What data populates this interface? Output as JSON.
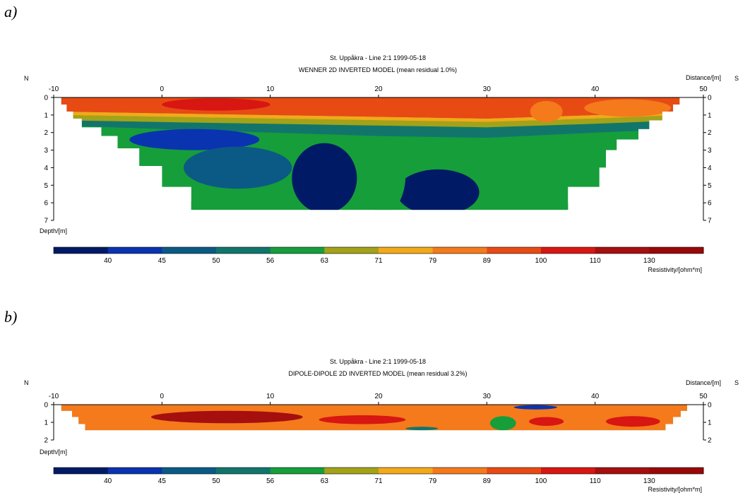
{
  "figure": {
    "labels": [
      "a)",
      "b)"
    ]
  },
  "chart_data": [
    {
      "type": "heatmap",
      "title": "St. Uppåkra - Line 2:1 1999-05-18",
      "subtitle": "WENNER 2D INVERTED MODEL (mean residual 1.0%)",
      "left_label": "N",
      "right_label": "S",
      "xlabel": "Distance/[m]",
      "ylabel": "Depth/[m]",
      "xlim": [
        -10,
        50
      ],
      "ylim": [
        0,
        7
      ],
      "x_ticks": [
        -10,
        0,
        10,
        20,
        30,
        40,
        50
      ],
      "y_ticks": [
        0,
        1,
        2,
        3,
        4,
        5,
        6,
        7
      ],
      "colorbar": {
        "label": "Resistivity/[ohm*m]",
        "tick_labels": [
          "40",
          "45",
          "50",
          "56",
          "63",
          "71",
          "79",
          "89",
          "100",
          "110",
          "130"
        ],
        "colors": [
          "#001a66",
          "#0a33b0",
          "#0a5a85",
          "#11756c",
          "#169e3a",
          "#a3a219",
          "#f2a91a",
          "#f47a1c",
          "#e84a14",
          "#d81612",
          "#a50f0e",
          "#990808"
        ]
      },
      "section_outline": [
        [
          -9.3,
          0
        ],
        [
          47.8,
          0
        ],
        [
          47.8,
          0.4
        ],
        [
          47.2,
          0.4
        ],
        [
          47.2,
          0.8
        ],
        [
          46.2,
          0.8
        ],
        [
          46.2,
          1.3
        ],
        [
          45,
          1.3
        ],
        [
          45,
          1.8
        ],
        [
          44,
          1.8
        ],
        [
          44,
          2.4
        ],
        [
          42,
          2.4
        ],
        [
          42,
          3
        ],
        [
          41,
          3
        ],
        [
          41,
          4
        ],
        [
          40.4,
          4
        ],
        [
          40.4,
          5.1
        ],
        [
          37.5,
          5.1
        ],
        [
          37.5,
          6.4
        ],
        [
          2.7,
          6.4
        ],
        [
          2.7,
          5.1
        ],
        [
          0,
          5.1
        ],
        [
          0,
          3.9
        ],
        [
          -2.1,
          3.9
        ],
        [
          -2.1,
          2.9
        ],
        [
          -4.1,
          2.9
        ],
        [
          -4.1,
          2.2
        ],
        [
          -5.6,
          2.2
        ],
        [
          -5.6,
          1.7
        ],
        [
          -7.4,
          1.7
        ],
        [
          -7.4,
          1.2
        ],
        [
          -8.2,
          1.2
        ],
        [
          -8.2,
          0.8
        ],
        [
          -8.8,
          0.8
        ],
        [
          -8.8,
          0.4
        ],
        [
          -9.3,
          0.4
        ]
      ],
      "bands": [
        {
          "level": 4,
          "top": [
            [
              -9.3,
              1.6
            ],
            [
              0,
              1.8
            ],
            [
              10,
              2.0
            ],
            [
              20,
              2.2
            ],
            [
              30,
              2.3
            ],
            [
              40,
              2.0
            ],
            [
              48,
              1.8
            ]
          ],
          "bottom": [
            [
              -9.3,
              7
            ],
            [
              48,
              7
            ]
          ]
        },
        {
          "level": 3,
          "top": [
            [
              -9.3,
              1.3
            ],
            [
              0,
              1.4
            ],
            [
              10,
              1.5
            ],
            [
              20,
              1.6
            ],
            [
              30,
              1.7
            ],
            [
              40,
              1.5
            ],
            [
              48,
              1.3
            ]
          ],
          "bottom": [
            [
              48,
              1.8
            ],
            [
              40,
              2.0
            ],
            [
              30,
              2.3
            ],
            [
              20,
              2.2
            ],
            [
              10,
              2.0
            ],
            [
              0,
              1.8
            ],
            [
              -9.3,
              1.6
            ]
          ]
        },
        {
          "level": 5,
          "top": [
            [
              -9.3,
              1.0
            ],
            [
              0,
              1.1
            ],
            [
              10,
              1.2
            ],
            [
              20,
              1.3
            ],
            [
              30,
              1.4
            ],
            [
              40,
              1.2
            ],
            [
              48,
              1.0
            ]
          ],
          "bottom": [
            [
              48,
              1.3
            ],
            [
              40,
              1.5
            ],
            [
              30,
              1.7
            ],
            [
              20,
              1.6
            ],
            [
              10,
              1.5
            ],
            [
              0,
              1.4
            ],
            [
              -9.3,
              1.3
            ]
          ]
        },
        {
          "level": 6,
          "top": [
            [
              -9.3,
              0.8
            ],
            [
              0,
              0.9
            ],
            [
              10,
              1.0
            ],
            [
              20,
              1.1
            ],
            [
              30,
              1.2
            ],
            [
              40,
              1.0
            ],
            [
              48,
              0.8
            ]
          ],
          "bottom": [
            [
              48,
              1.0
            ],
            [
              40,
              1.2
            ],
            [
              30,
              1.4
            ],
            [
              20,
              1.3
            ],
            [
              10,
              1.2
            ],
            [
              0,
              1.1
            ],
            [
              -9.3,
              1.0
            ]
          ]
        },
        {
          "level": 8,
          "top": [
            [
              -9.3,
              0
            ],
            [
              48,
              0
            ]
          ],
          "bottom": [
            [
              48,
              0.8
            ],
            [
              40,
              1.0
            ],
            [
              30,
              1.2
            ],
            [
              20,
              1.1
            ],
            [
              10,
              1.0
            ],
            [
              0,
              0.9
            ],
            [
              -9.3,
              0.8
            ]
          ]
        }
      ],
      "blobs": [
        {
          "level": 0,
          "cx": 15.0,
          "cy": 4.6,
          "rx": 3.0,
          "ry": 2.0
        },
        {
          "level": 0,
          "cx": 25.5,
          "cy": 5.4,
          "rx": 3.8,
          "ry": 1.3
        },
        {
          "level": 1,
          "cx": 3.0,
          "cy": 2.4,
          "rx": 6.0,
          "ry": 0.6
        },
        {
          "level": 4,
          "cx": 20.5,
          "cy": 4.4,
          "rx": 2.0,
          "ry": 2.2
        },
        {
          "level": 2,
          "cx": 7.0,
          "cy": 4.0,
          "rx": 5.0,
          "ry": 1.2
        },
        {
          "level": 9,
          "cx": 5.0,
          "cy": 0.4,
          "rx": 5.0,
          "ry": 0.35
        },
        {
          "level": 7,
          "cx": 43.0,
          "cy": 0.6,
          "rx": 4.0,
          "ry": 0.5
        },
        {
          "level": 7,
          "cx": 35.5,
          "cy": 0.8,
          "rx": 1.5,
          "ry": 0.6
        }
      ]
    },
    {
      "type": "heatmap",
      "title": "St. Uppåkra - Line 2:1 1999-05-18",
      "subtitle": "DIPOLE-DIPOLE 2D INVERTED MODEL (mean residual 3.2%)",
      "left_label": "N",
      "right_label": "S",
      "xlabel": "Distance/[m]",
      "ylabel": "Depth/[m]",
      "xlim": [
        -10,
        50
      ],
      "ylim": [
        0,
        2
      ],
      "x_ticks": [
        -10,
        0,
        10,
        20,
        30,
        40,
        50
      ],
      "y_ticks": [
        0,
        1,
        2
      ],
      "colorbar": {
        "label": "Resistivity/[ohm*m]",
        "tick_labels": [
          "40",
          "45",
          "50",
          "56",
          "63",
          "71",
          "79",
          "89",
          "100",
          "110",
          "130"
        ],
        "colors": [
          "#001a66",
          "#0a33b0",
          "#0a5a85",
          "#11756c",
          "#169e3a",
          "#a3a219",
          "#f2a91a",
          "#f47a1c",
          "#e84a14",
          "#d81612",
          "#a50f0e",
          "#990808"
        ]
      },
      "section_outline": [
        [
          -9.3,
          0
        ],
        [
          48.5,
          0
        ],
        [
          48.5,
          0.35
        ],
        [
          47.9,
          0.35
        ],
        [
          47.9,
          0.7
        ],
        [
          47.2,
          0.7
        ],
        [
          47.2,
          1.1
        ],
        [
          46.5,
          1.1
        ],
        [
          46.5,
          1.45
        ],
        [
          -7.1,
          1.45
        ],
        [
          -7.1,
          1.1
        ],
        [
          -7.7,
          1.1
        ],
        [
          -7.7,
          0.7
        ],
        [
          -8.3,
          0.7
        ],
        [
          -8.3,
          0.35
        ],
        [
          -9.3,
          0.35
        ]
      ],
      "bands": [
        {
          "level": 7,
          "top": [
            [
              -9.3,
              0
            ],
            [
              48.5,
              0
            ]
          ],
          "bottom": [
            [
              48.5,
              1.45
            ],
            [
              -9.3,
              1.45
            ]
          ]
        }
      ],
      "blobs": [
        {
          "level": 10,
          "cx": 6.0,
          "cy": 0.7,
          "rx": 7.0,
          "ry": 0.35
        },
        {
          "level": 9,
          "cx": 18.5,
          "cy": 0.85,
          "rx": 4.0,
          "ry": 0.25
        },
        {
          "level": 9,
          "cx": 43.5,
          "cy": 0.95,
          "rx": 2.5,
          "ry": 0.3
        },
        {
          "level": 9,
          "cx": 35.5,
          "cy": 0.95,
          "rx": 1.6,
          "ry": 0.25
        },
        {
          "level": 4,
          "cx": 31.5,
          "cy": 1.05,
          "rx": 1.2,
          "ry": 0.4
        },
        {
          "level": 1,
          "cx": 34.5,
          "cy": 0.15,
          "rx": 2.0,
          "ry": 0.12
        },
        {
          "level": 3,
          "cx": 24.0,
          "cy": 1.35,
          "rx": 1.5,
          "ry": 0.1
        }
      ]
    }
  ]
}
